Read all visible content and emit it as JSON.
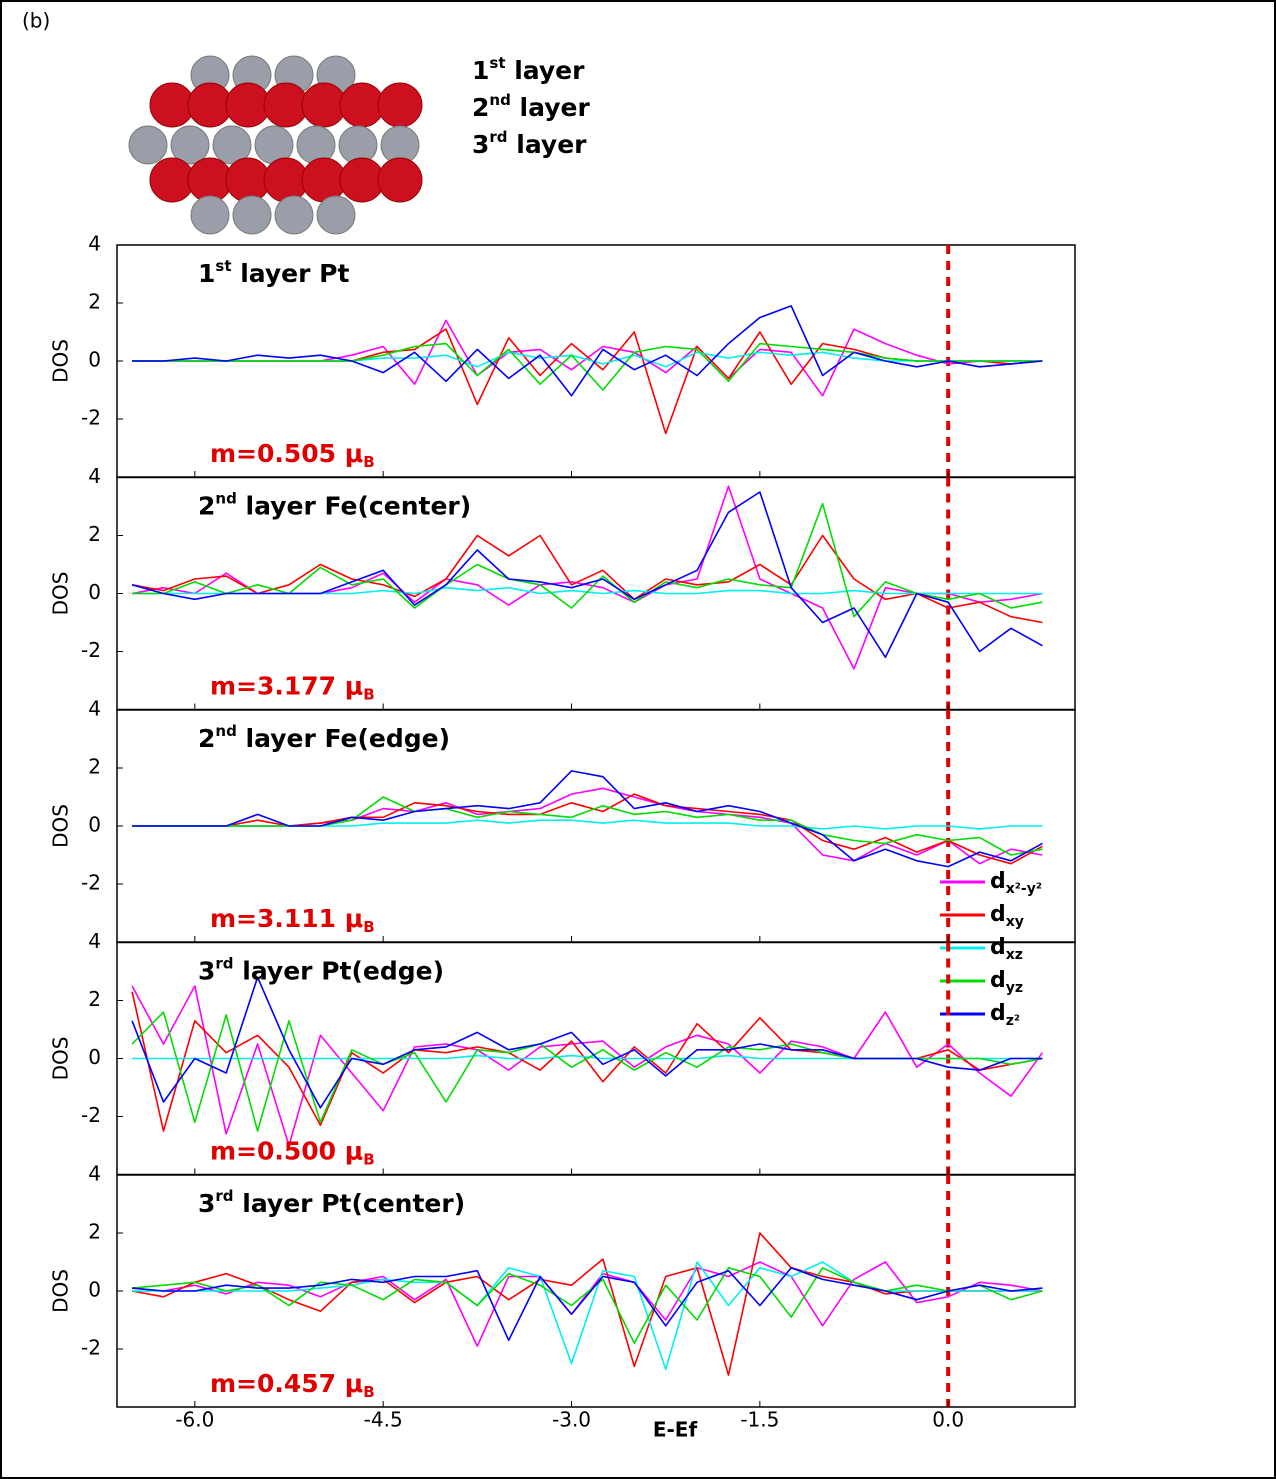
{
  "label": "(b)",
  "structure_labels": [
    [
      "1",
      "st",
      " layer"
    ],
    [
      "2",
      "nd",
      " layer"
    ],
    [
      "3",
      "rd",
      "  layer"
    ]
  ],
  "chart_data": [
    {
      "type": "line",
      "title": [
        "1",
        "st",
        " layer Pt"
      ],
      "annotation": [
        "m=0.505 μ",
        "B"
      ],
      "ylabel": "DOS",
      "xlim": [
        -6.62,
        1.01
      ],
      "ylim": [
        -4,
        4
      ],
      "yticks": [
        -2,
        0,
        2,
        4
      ],
      "vline": 0,
      "vline_color": "#e00000",
      "x": [
        -6.5,
        -6.25,
        -6,
        -5.75,
        -5.5,
        -5.25,
        -5,
        -4.75,
        -4.5,
        -4.25,
        -4,
        -3.75,
        -3.5,
        -3.25,
        -3,
        -2.75,
        -2.5,
        -2.25,
        -2,
        -1.75,
        -1.5,
        -1.25,
        -1,
        -0.75,
        -0.5,
        -0.25,
        0,
        0.25,
        0.5,
        0.75
      ],
      "series": [
        {
          "color": "#ff00ff",
          "values": [
            0,
            0,
            0,
            0,
            0,
            0,
            0,
            0.2,
            0.5,
            -0.8,
            1.4,
            -0.5,
            0.3,
            0.4,
            -0.3,
            0.5,
            0.3,
            -0.4,
            0.5,
            -0.6,
            0.4,
            0.3,
            -1.2,
            1.1,
            0.6,
            0.2,
            -0.1,
            0,
            0,
            0
          ]
        },
        {
          "color": "#ff0000",
          "values": [
            0,
            0,
            0,
            0,
            0,
            0,
            0,
            0,
            0.3,
            0.4,
            1.1,
            -1.5,
            0.8,
            -0.5,
            0.6,
            -0.3,
            1.0,
            -2.5,
            0.5,
            -0.6,
            1.0,
            -0.8,
            0.6,
            0.4,
            0.1,
            0,
            0,
            0,
            -0.1,
            0
          ]
        },
        {
          "color": "#00f0f0",
          "values": [
            0,
            0,
            0,
            0,
            0,
            0,
            0,
            0,
            0.1,
            0.1,
            0.2,
            -0.2,
            0.3,
            0.1,
            0.2,
            -0.1,
            0.2,
            -0.2,
            0.3,
            0.1,
            0.3,
            0.2,
            0.3,
            0.1,
            0,
            0,
            0,
            0,
            0,
            0
          ]
        },
        {
          "color": "#00dd00",
          "values": [
            0,
            0,
            0,
            0,
            0,
            0,
            0,
            0,
            0.2,
            0.5,
            0.6,
            -0.5,
            0.4,
            -0.8,
            0.2,
            -1.0,
            0.3,
            0.5,
            0.4,
            -0.7,
            0.6,
            0.5,
            0.4,
            0.3,
            0.1,
            0,
            0,
            0,
            0,
            0
          ]
        },
        {
          "color": "#0000ff",
          "values": [
            0,
            0,
            0.1,
            0,
            0.2,
            0.1,
            0.2,
            0,
            -0.4,
            0.3,
            -0.7,
            0.4,
            -0.6,
            0.2,
            -1.2,
            0.4,
            -0.3,
            0.2,
            -0.5,
            0.6,
            1.5,
            1.9,
            -0.5,
            0.3,
            0,
            -0.2,
            0,
            -0.2,
            -0.1,
            0
          ]
        }
      ]
    },
    {
      "type": "line",
      "title": [
        "2",
        "nd",
        " layer Fe(center)"
      ],
      "annotation": [
        "m=3.177 μ",
        "B"
      ],
      "ylabel": "DOS",
      "xlim": [
        -6.62,
        1.01
      ],
      "ylim": [
        -4,
        4
      ],
      "yticks": [
        -2,
        0,
        2,
        4
      ],
      "vline": 0,
      "vline_color": "#e00000",
      "x": [
        -6.5,
        -6.25,
        -6,
        -5.75,
        -5.5,
        -5.25,
        -5,
        -4.75,
        -4.5,
        -4.25,
        -4,
        -3.75,
        -3.5,
        -3.25,
        -3,
        -2.75,
        -2.5,
        -2.25,
        -2,
        -1.75,
        -1.5,
        -1.25,
        -1,
        -0.75,
        -0.5,
        -0.25,
        0,
        0.25,
        0.5,
        0.75
      ],
      "series": [
        {
          "color": "#ff00ff",
          "values": [
            0,
            0.2,
            0,
            0.7,
            0,
            0,
            0,
            0.2,
            0.7,
            -0.3,
            0.5,
            0.3,
            -0.4,
            0.3,
            0.4,
            0.2,
            -0.3,
            0.3,
            0.5,
            3.7,
            0.5,
            0,
            -0.5,
            -2.6,
            0.2,
            0,
            0,
            -0.3,
            -0.2,
            0
          ]
        },
        {
          "color": "#ff0000",
          "values": [
            0.3,
            0.1,
            0.5,
            0.6,
            0,
            0.3,
            1.0,
            0.5,
            0.3,
            -0.1,
            0.5,
            2.0,
            1.3,
            2.0,
            0.3,
            0.8,
            -0.2,
            0.5,
            0.3,
            0.4,
            1.0,
            0.3,
            2.0,
            0.5,
            -0.2,
            0,
            -0.5,
            -0.3,
            -0.8,
            -1.0
          ]
        },
        {
          "color": "#00f0f0",
          "values": [
            0,
            0,
            0,
            0,
            0,
            0,
            0,
            0,
            0.1,
            0,
            0.2,
            0.1,
            0.2,
            0,
            0.1,
            0,
            0.1,
            0,
            0,
            0.1,
            0.1,
            0,
            0,
            0.1,
            0,
            0,
            0,
            0,
            0,
            0
          ]
        },
        {
          "color": "#00dd00",
          "values": [
            0,
            0,
            0.4,
            0,
            0.3,
            0,
            0.9,
            0.3,
            0.5,
            -0.5,
            0.3,
            1.0,
            0.5,
            0.3,
            -0.5,
            0.6,
            -0.3,
            0.4,
            0.2,
            0.5,
            0.3,
            0.2,
            3.1,
            -0.8,
            0.4,
            0,
            -0.2,
            0,
            -0.5,
            -0.3
          ]
        },
        {
          "color": "#0000ff",
          "values": [
            0.3,
            0,
            -0.2,
            0,
            0,
            0,
            0,
            0.4,
            0.8,
            -0.4,
            0.3,
            1.5,
            0.5,
            0.4,
            0.2,
            0.5,
            -0.2,
            0.3,
            0.8,
            2.8,
            3.5,
            0.2,
            -1.0,
            -0.5,
            -2.2,
            0,
            -0.3,
            -2.0,
            -1.2,
            -1.8
          ]
        }
      ]
    },
    {
      "type": "line",
      "title": [
        "2",
        "nd",
        " layer Fe(edge)"
      ],
      "annotation": [
        "m=3.111 μ",
        "B"
      ],
      "ylabel": "DOS",
      "xlim": [
        -6.62,
        1.01
      ],
      "ylim": [
        -4,
        4
      ],
      "yticks": [
        -2,
        0,
        2,
        4
      ],
      "vline": 0,
      "vline_color": "#e00000",
      "legend": "lower right",
      "x": [
        -6.5,
        -6.25,
        -6,
        -5.75,
        -5.5,
        -5.25,
        -5,
        -4.75,
        -4.5,
        -4.25,
        -4,
        -3.75,
        -3.5,
        -3.25,
        -3,
        -2.75,
        -2.5,
        -2.25,
        -2,
        -1.75,
        -1.5,
        -1.25,
        -1,
        -0.75,
        -0.5,
        -0.25,
        0,
        0.25,
        0.5,
        0.75
      ],
      "series": [
        {
          "name": "dx²-y²",
          "color": "#ff00ff",
          "values": [
            0,
            0,
            0,
            0,
            0,
            0,
            0.1,
            0.2,
            0.6,
            0.5,
            0.8,
            0.4,
            0.5,
            0.6,
            1.1,
            1.3,
            1.0,
            0.7,
            0.5,
            0.4,
            0.3,
            0.1,
            -1.0,
            -1.2,
            -0.6,
            -1.0,
            -0.5,
            -1.3,
            -0.8,
            -1.0
          ]
        },
        {
          "name": "dxy",
          "color": "#ff0000",
          "values": [
            0,
            0,
            0,
            0,
            0.2,
            0,
            0.1,
            0.3,
            0.3,
            0.8,
            0.7,
            0.5,
            0.4,
            0.4,
            0.8,
            0.5,
            1.1,
            0.7,
            0.6,
            0.5,
            0.4,
            0.2,
            -0.5,
            -0.8,
            -0.4,
            -0.9,
            -0.5,
            -1.0,
            -1.3,
            -0.7
          ]
        },
        {
          "name": "dxz",
          "color": "#00f0f0",
          "values": [
            0,
            0,
            0,
            0,
            0,
            0,
            0,
            0,
            0.1,
            0.1,
            0.1,
            0.2,
            0.1,
            0.2,
            0.2,
            0.1,
            0.2,
            0.1,
            0.1,
            0.1,
            0,
            0,
            -0.1,
            0,
            -0.1,
            0,
            0,
            -0.1,
            0,
            0
          ]
        },
        {
          "name": "dyz",
          "color": "#00dd00",
          "values": [
            0,
            0,
            0,
            0,
            0,
            0,
            0,
            0.2,
            1.0,
            0.5,
            0.6,
            0.3,
            0.5,
            0.4,
            0.3,
            0.7,
            0.4,
            0.5,
            0.3,
            0.4,
            0.2,
            0.2,
            -0.3,
            -0.5,
            -0.6,
            -0.3,
            -0.5,
            -0.4,
            -1.0,
            -0.8
          ]
        },
        {
          "name": "dz²",
          "color": "#0000ff",
          "values": [
            0,
            0,
            0,
            0,
            0.4,
            0,
            0,
            0.3,
            0.2,
            0.5,
            0.6,
            0.7,
            0.6,
            0.8,
            1.9,
            1.7,
            0.6,
            0.8,
            0.5,
            0.7,
            0.5,
            0.1,
            -0.3,
            -1.2,
            -0.8,
            -1.2,
            -1.4,
            -0.9,
            -1.2,
            -0.6
          ]
        }
      ]
    },
    {
      "type": "line",
      "title": [
        "3",
        "rd",
        " layer Pt(edge)"
      ],
      "annotation": [
        "m=0.500 μ",
        "B"
      ],
      "ylabel": "DOS",
      "xlim": [
        -6.62,
        1.01
      ],
      "ylim": [
        -4,
        4
      ],
      "yticks": [
        -2,
        0,
        2,
        4
      ],
      "vline": 0,
      "vline_color": "#e00000",
      "x": [
        -6.5,
        -6.25,
        -6,
        -5.75,
        -5.5,
        -5.25,
        -5,
        -4.75,
        -4.5,
        -4.25,
        -4,
        -3.75,
        -3.5,
        -3.25,
        -3,
        -2.75,
        -2.5,
        -2.25,
        -2,
        -1.75,
        -1.5,
        -1.25,
        -1,
        -0.75,
        -0.5,
        -0.25,
        0,
        0.25,
        0.5,
        0.75
      ],
      "series": [
        {
          "color": "#ff00ff",
          "values": [
            2.5,
            0.5,
            2.5,
            -2.6,
            0.5,
            -3.0,
            0.8,
            -0.5,
            -1.8,
            0.4,
            0.5,
            0.3,
            -0.4,
            0.4,
            0.5,
            0.6,
            -0.3,
            0.4,
            0.8,
            0.5,
            -0.5,
            0.6,
            0.4,
            0,
            1.6,
            -0.3,
            0.5,
            -0.5,
            -1.3,
            0.2
          ]
        },
        {
          "color": "#ff0000",
          "values": [
            2.3,
            -2.5,
            1.3,
            0.2,
            0.8,
            -0.3,
            -2.3,
            0.2,
            -0.5,
            0.3,
            0.2,
            0.4,
            0.2,
            -0.4,
            0.6,
            -0.8,
            0.4,
            -0.5,
            1.2,
            0.2,
            1.4,
            0.3,
            0.2,
            0,
            0,
            0,
            0.3,
            -0.4,
            -0.2,
            0
          ]
        },
        {
          "color": "#00f0f0",
          "values": [
            0,
            0,
            0,
            0,
            0,
            0,
            0,
            0,
            0,
            0,
            0,
            0.1,
            0,
            0,
            0.1,
            0,
            0,
            0,
            0,
            0.1,
            0,
            0,
            0,
            0,
            0,
            0,
            0,
            0,
            0,
            0
          ]
        },
        {
          "color": "#00dd00",
          "values": [
            0.5,
            1.6,
            -2.2,
            1.5,
            -2.5,
            1.3,
            -2.2,
            0.3,
            -0.2,
            0.2,
            -1.5,
            0.3,
            0.2,
            0.5,
            -0.3,
            0.3,
            -0.4,
            0.2,
            -0.3,
            0.4,
            0.3,
            0.5,
            0.2,
            0,
            0,
            0,
            0,
            0,
            -0.2,
            0
          ]
        },
        {
          "color": "#0000ff",
          "values": [
            1.3,
            -1.5,
            0,
            -0.5,
            2.8,
            0.3,
            -1.7,
            0,
            -0.2,
            0.3,
            0.4,
            0.9,
            0.3,
            0.5,
            0.9,
            -0.2,
            0.3,
            -0.6,
            0.3,
            0.3,
            0.5,
            0.3,
            0.3,
            0,
            0,
            0,
            -0.3,
            -0.4,
            0,
            0
          ]
        }
      ]
    },
    {
      "type": "line",
      "title": [
        "3",
        "rd",
        " layer Pt(center)"
      ],
      "annotation": [
        "m=0.457 μ",
        "B"
      ],
      "ylabel": "DOS",
      "xlabel": "E-Ef",
      "xlim": [
        -6.62,
        1.01
      ],
      "ylim": [
        -4,
        4
      ],
      "yticks": [
        -2,
        0,
        2,
        4
      ],
      "vline": 0,
      "vline_color": "#e00000",
      "xticks": [
        {
          "value": -6,
          "label": "-6.0"
        },
        {
          "value": -4.5,
          "label": "-4.5"
        },
        {
          "value": -3,
          "label": "-3.0"
        },
        {
          "value": -1.5,
          "label": "-1.5"
        },
        {
          "value": 0,
          "label": "0.0"
        }
      ],
      "x": [
        -6.5,
        -6.25,
        -6,
        -5.75,
        -5.5,
        -5.25,
        -5,
        -4.75,
        -4.5,
        -4.25,
        -4,
        -3.75,
        -3.5,
        -3.25,
        -3,
        -2.75,
        -2.5,
        -2.25,
        -2,
        -1.75,
        -1.5,
        -1.25,
        -1,
        -0.75,
        -0.5,
        -0.25,
        0,
        0.25,
        0.5,
        0.75
      ],
      "series": [
        {
          "color": "#ff00ff",
          "values": [
            0.1,
            0,
            0.2,
            -0.1,
            0.3,
            0.2,
            -0.2,
            0.3,
            0.5,
            -0.3,
            0.4,
            -1.9,
            0.5,
            0.5,
            -0.8,
            0.6,
            0.3,
            -1.0,
            0.8,
            0.5,
            1.0,
            0.5,
            -1.2,
            0.4,
            1.0,
            -0.4,
            -0.2,
            0.3,
            0.2,
            0
          ]
        },
        {
          "color": "#ff0000",
          "values": [
            0,
            -0.2,
            0.3,
            0.6,
            0.2,
            -0.3,
            -0.7,
            0.3,
            0.4,
            -0.4,
            0.3,
            0.5,
            -0.3,
            0.4,
            0.2,
            1.1,
            -2.6,
            0.5,
            0.8,
            -2.9,
            2.0,
            0.8,
            0.5,
            0.3,
            -0.1,
            0,
            0,
            0,
            0,
            0
          ]
        },
        {
          "color": "#00f0f0",
          "values": [
            0,
            0,
            0,
            0,
            0,
            0,
            0.1,
            0.2,
            0.4,
            0.3,
            0.3,
            -0.5,
            0.8,
            0.5,
            -2.5,
            0.7,
            0.5,
            -2.7,
            1.0,
            -0.5,
            0.8,
            0.5,
            1.0,
            0.3,
            0,
            0,
            0,
            0,
            0,
            0
          ]
        },
        {
          "color": "#00dd00",
          "values": [
            0.1,
            0.2,
            0.3,
            0,
            0.2,
            -0.5,
            0.3,
            0.2,
            -0.3,
            0.4,
            0.3,
            -0.5,
            0.6,
            0.2,
            -0.5,
            0.4,
            -1.8,
            0.2,
            -1.0,
            0.8,
            0.5,
            -0.9,
            0.8,
            0.3,
            0,
            0.2,
            0,
            0.2,
            -0.3,
            0
          ]
        },
        {
          "color": "#0000ff",
          "values": [
            0.1,
            0,
            0,
            0.2,
            0.1,
            0.1,
            0.2,
            0.4,
            0.3,
            0.5,
            0.5,
            0.7,
            -1.7,
            0.5,
            -0.8,
            0.5,
            0.3,
            -1.2,
            0.3,
            0.7,
            -0.5,
            0.8,
            0.4,
            0.2,
            0,
            -0.3,
            0,
            0.2,
            0,
            0.1
          ]
        }
      ]
    }
  ]
}
